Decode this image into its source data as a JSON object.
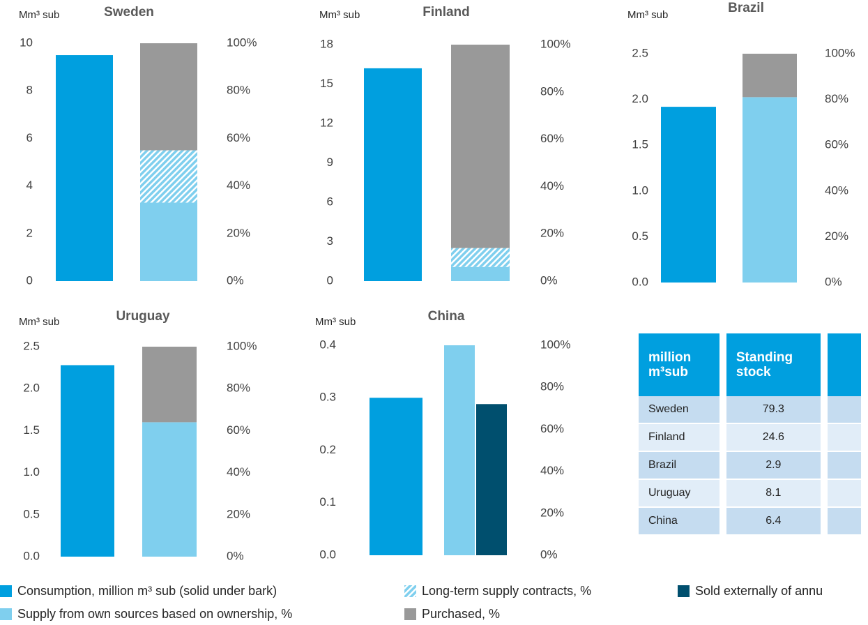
{
  "chart_data": [
    {
      "type": "bar",
      "title": "Sweden",
      "y_label": "Mm³ sub",
      "consumption": 9.5,
      "own": 33,
      "long_term": 22,
      "purchased": 45,
      "ylim": [
        0,
        10
      ],
      "yticks": [
        0,
        2,
        4,
        6,
        8,
        10
      ],
      "y2lim": [
        0,
        100
      ],
      "y2ticks": [
        {
          "value": 0,
          "label": "0%"
        },
        {
          "value": 20,
          "label": "20%"
        },
        {
          "value": 40,
          "label": "40%"
        },
        {
          "value": 60,
          "label": "60%"
        },
        {
          "value": 80,
          "label": "80%"
        },
        {
          "value": 100,
          "label": "100%"
        }
      ]
    },
    {
      "type": "bar",
      "title": "Finland",
      "y_label": "Mm³ sub",
      "consumption": 16.2,
      "own": 6,
      "long_term": 8,
      "purchased": 86,
      "ylim": [
        0,
        18
      ],
      "yticks": [
        0,
        3,
        6,
        9,
        12,
        15,
        18
      ],
      "y2lim": [
        0,
        100
      ],
      "y2ticks": [
        {
          "value": 0,
          "label": "0%"
        },
        {
          "value": 20,
          "label": "20%"
        },
        {
          "value": 40,
          "label": "40%"
        },
        {
          "value": 60,
          "label": "60%"
        },
        {
          "value": 80,
          "label": "80%"
        },
        {
          "value": 100,
          "label": "100%"
        }
      ]
    },
    {
      "type": "bar",
      "title": "Brazil",
      "y_label": "Mm³ sub",
      "consumption": 1.92,
      "own": 81,
      "purchased": 19,
      "ylim": [
        0,
        2.5
      ],
      "yticks": [
        {
          "value": 0,
          "label": "0.0"
        },
        0.5,
        {
          "value": 1,
          "label": "1.0"
        },
        1.5,
        {
          "value": 2,
          "label": "2.0"
        },
        2.5
      ],
      "y2lim": [
        0,
        100
      ],
      "y2ticks": [
        {
          "value": 0,
          "label": "0%"
        },
        {
          "value": 20,
          "label": "20%"
        },
        {
          "value": 40,
          "label": "40%"
        },
        {
          "value": 60,
          "label": "60%"
        },
        {
          "value": 80,
          "label": "80%"
        },
        {
          "value": 100,
          "label": "100%"
        }
      ]
    },
    {
      "type": "bar",
      "title": "Uruguay",
      "y_label": "Mm³ sub",
      "consumption": 2.28,
      "own": 64,
      "purchased": 36,
      "ylim": [
        0,
        2.5
      ],
      "yticks": [
        {
          "value": 0,
          "label": "0.0"
        },
        0.5,
        {
          "value": 1,
          "label": "1.0"
        },
        1.5,
        {
          "value": 2,
          "label": "2.0"
        },
        2.5
      ],
      "y2lim": [
        0,
        100
      ],
      "y2ticks": [
        {
          "value": 0,
          "label": "0%"
        },
        {
          "value": 20,
          "label": "20%"
        },
        {
          "value": 40,
          "label": "40%"
        },
        {
          "value": 60,
          "label": "60%"
        },
        {
          "value": 80,
          "label": "80%"
        },
        {
          "value": 100,
          "label": "100%"
        }
      ]
    },
    {
      "type": "bar",
      "title": "China",
      "y_label": "Mm³ sub",
      "consumption": 0.3,
      "own": 100,
      "sold_externally": 72,
      "ylim": [
        0,
        0.4
      ],
      "yticks": [
        {
          "value": 0,
          "label": "0.0"
        },
        0.1,
        0.2,
        0.3,
        0.4
      ],
      "y2lim": [
        0,
        100
      ],
      "y2ticks": [
        {
          "value": 0,
          "label": "0%"
        },
        {
          "value": 20,
          "label": "20%"
        },
        {
          "value": 40,
          "label": "40%"
        },
        {
          "value": 60,
          "label": "60%"
        },
        {
          "value": 80,
          "label": "80%"
        },
        {
          "value": 100,
          "label": "100%"
        }
      ]
    }
  ],
  "legend": [
    {
      "key": "consumption",
      "name": "Consumption, million m³ sub (solid under bark)",
      "color": "#009fdf"
    },
    {
      "key": "long_term",
      "name": "Long-term supply contracts, %",
      "color": "#7fcfee"
    },
    {
      "key": "sold_externally",
      "name": "Sold externally of annu",
      "color": "#004f6e"
    },
    {
      "key": "own",
      "name": "Supply from own sources based on ownership, %",
      "color": "#7fcfee"
    },
    {
      "key": "purchased",
      "name": "Purchased, %",
      "color": "#999999"
    }
  ],
  "table": {
    "header": [
      "million m³sub",
      "Standing stock"
    ],
    "rows": [
      [
        "Sweden",
        79.3
      ],
      [
        "Finland",
        24.6
      ],
      [
        "Brazil",
        2.9
      ],
      [
        "Uruguay",
        8.1
      ],
      [
        "China",
        6.4
      ]
    ]
  }
}
